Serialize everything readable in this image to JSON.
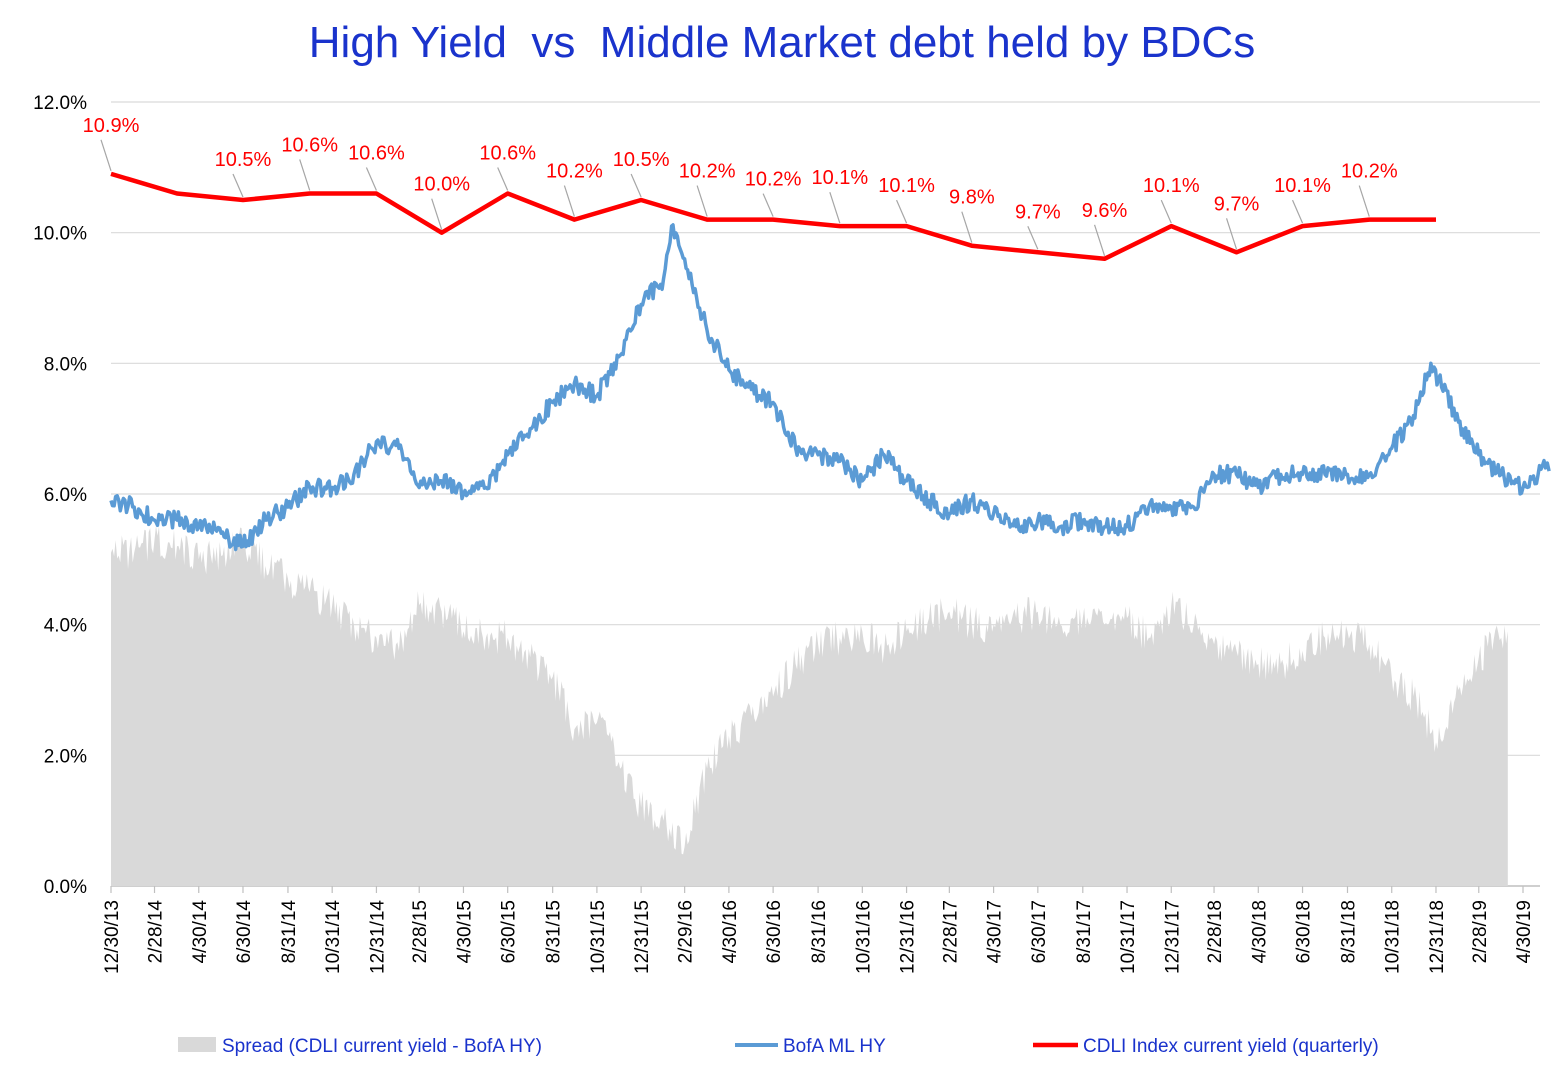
{
  "chart_data": {
    "type": "line",
    "title": "High Yield  vs  Middle Market debt held by BDCs",
    "ylim": [
      0,
      12
    ],
    "y_ticks": [
      "0.0%",
      "2.0%",
      "4.0%",
      "6.0%",
      "8.0%",
      "10.0%",
      "12.0%"
    ],
    "x_ticks": [
      "12/30/13",
      "2/28/14",
      "4/30/14",
      "6/30/14",
      "8/31/14",
      "10/31/14",
      "12/31/14",
      "2/28/15",
      "4/30/15",
      "6/30/15",
      "8/31/15",
      "10/31/15",
      "12/31/15",
      "2/29/16",
      "4/30/16",
      "6/30/16",
      "8/31/16",
      "10/31/16",
      "12/31/16",
      "2/28/17",
      "4/30/17",
      "6/30/17",
      "8/31/17",
      "10/31/17",
      "12/31/17",
      "2/28/18",
      "4/30/18",
      "6/30/18",
      "8/31/18",
      "10/31/18",
      "12/31/18",
      "2/28/19",
      "4/30/19"
    ],
    "grid": true,
    "legend_position": "bottom",
    "colors": {
      "spread": "#d9d9d9",
      "hy": "#5b9bd5",
      "cdli": "#ff0000",
      "title": "#1a33cc"
    },
    "series": [
      {
        "name": "Spread (CDLI current yield - BofA HY)",
        "kind": "area",
        "points": [
          [
            "12/30/13",
            5.1
          ],
          [
            "1/31/14",
            5.1
          ],
          [
            "2/28/14",
            5.3
          ],
          [
            "3/31/14",
            5.2
          ],
          [
            "4/30/14",
            5.0
          ],
          [
            "5/31/14",
            5.05
          ],
          [
            "6/30/14",
            5.3
          ],
          [
            "7/31/14",
            4.9
          ],
          [
            "8/31/14",
            4.7
          ],
          [
            "9/30/14",
            4.5
          ],
          [
            "10/31/14",
            4.3
          ],
          [
            "11/30/14",
            4.0
          ],
          [
            "12/31/14",
            3.8
          ],
          [
            "1/31/15",
            3.6
          ],
          [
            "2/28/15",
            4.3
          ],
          [
            "3/31/15",
            4.2
          ],
          [
            "4/30/15",
            3.9
          ],
          [
            "5/31/15",
            3.8
          ],
          [
            "6/30/15",
            3.8
          ],
          [
            "7/31/15",
            3.5
          ],
          [
            "8/31/15",
            3.2
          ],
          [
            "9/30/15",
            2.4
          ],
          [
            "10/31/15",
            2.5
          ],
          [
            "11/30/15",
            1.9
          ],
          [
            "12/31/15",
            1.2
          ],
          [
            "1/31/16",
            1.0
          ],
          [
            "2/29/16",
            0.6
          ],
          [
            "3/31/16",
            1.8
          ],
          [
            "4/30/16",
            2.3
          ],
          [
            "5/31/16",
            2.6
          ],
          [
            "6/30/16",
            2.9
          ],
          [
            "7/31/16",
            3.4
          ],
          [
            "8/31/16",
            3.7
          ],
          [
            "9/30/16",
            3.8
          ],
          [
            "10/31/16",
            3.9
          ],
          [
            "11/30/16",
            3.6
          ],
          [
            "12/31/16",
            3.9
          ],
          [
            "1/31/17",
            4.1
          ],
          [
            "2/28/17",
            4.2
          ],
          [
            "3/31/17",
            4.0
          ],
          [
            "4/30/17",
            4.0
          ],
          [
            "5/31/17",
            4.1
          ],
          [
            "6/30/17",
            4.2
          ],
          [
            "7/31/17",
            4.0
          ],
          [
            "8/31/17",
            4.1
          ],
          [
            "9/30/17",
            4.0
          ],
          [
            "10/31/17",
            4.1
          ],
          [
            "11/30/17",
            3.8
          ],
          [
            "12/31/17",
            4.3
          ],
          [
            "1/31/18",
            4.0
          ],
          [
            "2/28/18",
            3.7
          ],
          [
            "3/31/18",
            3.6
          ],
          [
            "4/30/18",
            3.4
          ],
          [
            "5/31/18",
            3.4
          ],
          [
            "6/30/18",
            3.6
          ],
          [
            "7/31/18",
            3.8
          ],
          [
            "8/31/18",
            3.9
          ],
          [
            "9/30/18",
            3.7
          ],
          [
            "10/31/18",
            3.2
          ],
          [
            "11/30/18",
            2.9
          ],
          [
            "12/31/18",
            2.2
          ],
          [
            "1/31/19",
            3.0
          ],
          [
            "2/28/19",
            3.5
          ],
          [
            "3/31/19",
            3.8
          ],
          [
            "4/9/19",
            3.9
          ]
        ]
      },
      {
        "name": "BofA ML HY",
        "kind": "line",
        "points": [
          [
            "12/30/13",
            5.9
          ],
          [
            "1/31/14",
            5.8
          ],
          [
            "2/28/14",
            5.6
          ],
          [
            "3/31/14",
            5.6
          ],
          [
            "4/30/14",
            5.5
          ],
          [
            "5/31/14",
            5.4
          ],
          [
            "6/30/14",
            5.2
          ],
          [
            "7/31/14",
            5.6
          ],
          [
            "8/31/14",
            5.8
          ],
          [
            "9/30/14",
            6.1
          ],
          [
            "10/31/14",
            6.1
          ],
          [
            "11/30/14",
            6.3
          ],
          [
            "12/31/14",
            6.8
          ],
          [
            "1/31/15",
            6.7
          ],
          [
            "2/28/15",
            6.1
          ],
          [
            "3/31/15",
            6.2
          ],
          [
            "4/30/15",
            6.0
          ],
          [
            "5/31/15",
            6.1
          ],
          [
            "6/30/15",
            6.6
          ],
          [
            "7/31/15",
            7.0
          ],
          [
            "8/31/15",
            7.4
          ],
          [
            "9/30/15",
            7.7
          ],
          [
            "10/31/15",
            7.5
          ],
          [
            "11/30/15",
            8.1
          ],
          [
            "12/31/15",
            8.9
          ],
          [
            "1/31/16",
            9.3
          ],
          [
            "2/11/16",
            10.1
          ],
          [
            "2/29/16",
            9.6
          ],
          [
            "3/31/16",
            8.5
          ],
          [
            "4/30/16",
            7.9
          ],
          [
            "5/31/16",
            7.6
          ],
          [
            "6/30/16",
            7.4
          ],
          [
            "7/31/16",
            6.7
          ],
          [
            "8/31/16",
            6.6
          ],
          [
            "9/30/16",
            6.5
          ],
          [
            "10/31/16",
            6.2
          ],
          [
            "11/30/16",
            6.6
          ],
          [
            "12/31/16",
            6.2
          ],
          [
            "1/31/17",
            5.9
          ],
          [
            "2/28/17",
            5.7
          ],
          [
            "3/31/17",
            5.9
          ],
          [
            "4/30/17",
            5.7
          ],
          [
            "5/31/17",
            5.5
          ],
          [
            "6/30/17",
            5.6
          ],
          [
            "7/31/17",
            5.5
          ],
          [
            "8/31/17",
            5.6
          ],
          [
            "9/30/17",
            5.5
          ],
          [
            "10/31/17",
            5.5
          ],
          [
            "11/30/17",
            5.8
          ],
          [
            "12/31/17",
            5.8
          ],
          [
            "1/31/18",
            5.8
          ],
          [
            "2/28/18",
            6.3
          ],
          [
            "3/31/18",
            6.3
          ],
          [
            "4/30/18",
            6.1
          ],
          [
            "5/31/18",
            6.3
          ],
          [
            "6/30/18",
            6.3
          ],
          [
            "7/31/18",
            6.3
          ],
          [
            "8/31/18",
            6.3
          ],
          [
            "9/30/18",
            6.3
          ],
          [
            "10/31/18",
            6.7
          ],
          [
            "11/30/18",
            7.2
          ],
          [
            "12/24/18",
            8.0
          ],
          [
            "1/31/19",
            7.1
          ],
          [
            "2/28/19",
            6.6
          ],
          [
            "3/31/19",
            6.3
          ],
          [
            "4/30/19",
            6.1
          ],
          [
            "5/31/19",
            6.4
          ],
          [
            "6/5/19",
            6.35
          ]
        ]
      },
      {
        "name": "CDLI Index current yield (quarterly)",
        "kind": "line",
        "points": [
          [
            "12/30/13",
            10.9
          ],
          [
            "3/31/14",
            10.6
          ],
          [
            "6/30/14",
            10.5
          ],
          [
            "9/30/14",
            10.6
          ],
          [
            "12/31/14",
            10.6
          ],
          [
            "3/31/15",
            10.0
          ],
          [
            "6/30/15",
            10.6
          ],
          [
            "9/30/15",
            10.2
          ],
          [
            "12/31/15",
            10.5
          ],
          [
            "3/31/16",
            10.2
          ],
          [
            "6/30/16",
            10.2
          ],
          [
            "9/30/16",
            10.1
          ],
          [
            "12/31/16",
            10.1
          ],
          [
            "3/31/17",
            9.8
          ],
          [
            "6/30/17",
            9.7
          ],
          [
            "9/30/17",
            9.6
          ],
          [
            "12/31/17",
            10.1
          ],
          [
            "3/31/18",
            9.7
          ],
          [
            "6/30/18",
            10.1
          ],
          [
            "9/30/18",
            10.2
          ],
          [
            "12/31/18",
            10.2
          ]
        ]
      }
    ],
    "annotations": [
      {
        "label": "10.9%",
        "date": "12/30/13"
      },
      {
        "label": "10.5%",
        "date": "6/30/14"
      },
      {
        "label": "10.6%",
        "date": "9/30/14"
      },
      {
        "label": "10.6%",
        "date": "12/31/14"
      },
      {
        "label": "10.0%",
        "date": "3/31/15"
      },
      {
        "label": "10.6%",
        "date": "6/30/15"
      },
      {
        "label": "10.2%",
        "date": "9/30/15"
      },
      {
        "label": "10.5%",
        "date": "12/31/15"
      },
      {
        "label": "10.2%",
        "date": "3/31/16"
      },
      {
        "label": "10.2%",
        "date": "6/30/16"
      },
      {
        "label": "10.1%",
        "date": "9/30/16"
      },
      {
        "label": "10.1%",
        "date": "12/31/16"
      },
      {
        "label": "9.8%",
        "date": "3/31/17"
      },
      {
        "label": "9.7%",
        "date": "6/30/17"
      },
      {
        "label": "9.6%",
        "date": "9/30/17"
      },
      {
        "label": "10.1%",
        "date": "12/31/17"
      },
      {
        "label": "9.7%",
        "date": "3/31/18"
      },
      {
        "label": "10.1%",
        "date": "6/30/18"
      },
      {
        "label": "10.2%",
        "date": "9/30/18"
      }
    ]
  }
}
